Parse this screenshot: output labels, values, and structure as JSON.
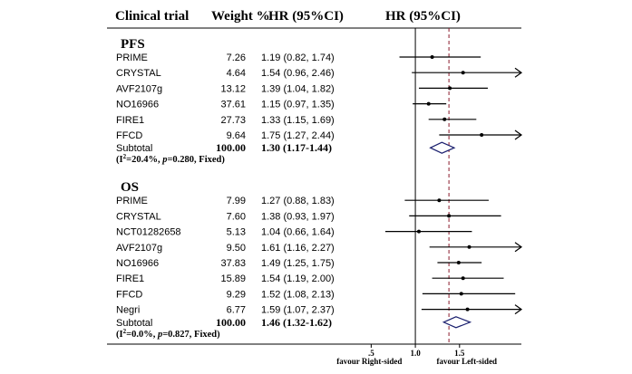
{
  "chart_data": {
    "type": "forest",
    "headers": {
      "trial": "Clinical trial",
      "weight": "Weight %",
      "hr_text": "HR (95%CI)",
      "hr_plot": "HR (95%CI)"
    },
    "x_scale": {
      "min": 0.25,
      "max": 2.2,
      "line_of_no_effect": 1.0,
      "pooled_reference": 1.38
    },
    "x_ticks": [
      {
        "value": 0.5,
        "label": ".5",
        "favour": "favour Right-sided"
      },
      {
        "value": 1.0,
        "label": "1.0",
        "favour": ""
      },
      {
        "value": 1.5,
        "label": "1.5",
        "favour": "favour Left-sided"
      }
    ],
    "groups": [
      {
        "name": "PFS",
        "studies": [
          {
            "trial": "PRIME",
            "weight": "7.26",
            "ci_text": "1.19 (0.82, 1.74)",
            "hr": 1.19,
            "lo": 0.82,
            "hi": 1.74
          },
          {
            "trial": "CRYSTAL",
            "weight": "4.64",
            "ci_text": "1.54 (0.96, 2.46)",
            "hr": 1.54,
            "lo": 0.96,
            "hi": 2.46
          },
          {
            "trial": "AVF2107g",
            "weight": "13.12",
            "ci_text": "1.39 (1.04, 1.82)",
            "hr": 1.39,
            "lo": 1.04,
            "hi": 1.82
          },
          {
            "trial": "NO16966",
            "weight": "37.61",
            "ci_text": "1.15 (0.97, 1.35)",
            "hr": 1.15,
            "lo": 0.97,
            "hi": 1.35
          },
          {
            "trial": "FIRE1",
            "weight": "27.73",
            "ci_text": "1.33 (1.15, 1.69)",
            "hr": 1.33,
            "lo": 1.15,
            "hi": 1.69
          },
          {
            "trial": "FFCD",
            "weight": "9.64",
            "ci_text": "1.75 (1.27, 2.44)",
            "hr": 1.75,
            "lo": 1.27,
            "hi": 2.44
          }
        ],
        "subtotal": {
          "label": "Subtotal",
          "weight": "100.00",
          "ci_text": "1.30 (1.17-1.44)",
          "hr": 1.3,
          "lo": 1.17,
          "hi": 1.44
        },
        "heterogeneity": {
          "i2": "20.4%",
          "p": "0.280",
          "model": "Fixed"
        }
      },
      {
        "name": "OS",
        "studies": [
          {
            "trial": "PRIME",
            "weight": "7.99",
            "ci_text": "1.27 (0.88, 1.83)",
            "hr": 1.27,
            "lo": 0.88,
            "hi": 1.83
          },
          {
            "trial": "CRYSTAL",
            "weight": "7.60",
            "ci_text": "1.38 (0.93, 1.97)",
            "hr": 1.38,
            "lo": 0.93,
            "hi": 1.97
          },
          {
            "trial": "NCT01282658",
            "weight": "5.13",
            "ci_text": "1.04 (0.66, 1.64)",
            "hr": 1.04,
            "lo": 0.66,
            "hi": 1.64
          },
          {
            "trial": "AVF2107g",
            "weight": "9.50",
            "ci_text": "1.61 (1.16, 2.27)",
            "hr": 1.61,
            "lo": 1.16,
            "hi": 2.27
          },
          {
            "trial": "NO16966",
            "weight": "37.83",
            "ci_text": "1.49 (1.25, 1.75)",
            "hr": 1.49,
            "lo": 1.25,
            "hi": 1.75
          },
          {
            "trial": "FIRE1",
            "weight": "15.89",
            "ci_text": "1.54 (1.19, 2.00)",
            "hr": 1.54,
            "lo": 1.19,
            "hi": 2.0
          },
          {
            "trial": "FFCD",
            "weight": "9.29",
            "ci_text": "1.52 (1.08, 2.13)",
            "hr": 1.52,
            "lo": 1.08,
            "hi": 2.13
          },
          {
            "trial": "Negri",
            "weight": "6.77",
            "ci_text": "1.59 (1.07, 2.37)",
            "hr": 1.59,
            "lo": 1.07,
            "hi": 2.37
          }
        ],
        "subtotal": {
          "label": "Subtotal",
          "weight": "100.00",
          "ci_text": "1.46 (1.32-1.62)",
          "hr": 1.46,
          "lo": 1.32,
          "hi": 1.62
        },
        "heterogeneity": {
          "i2": "0.0%",
          "p": "0.827",
          "model": "Fixed"
        }
      }
    ],
    "colors": {
      "line": "#000000",
      "reference": "#8b1a2b",
      "diamond": "#1a1f6e"
    }
  }
}
